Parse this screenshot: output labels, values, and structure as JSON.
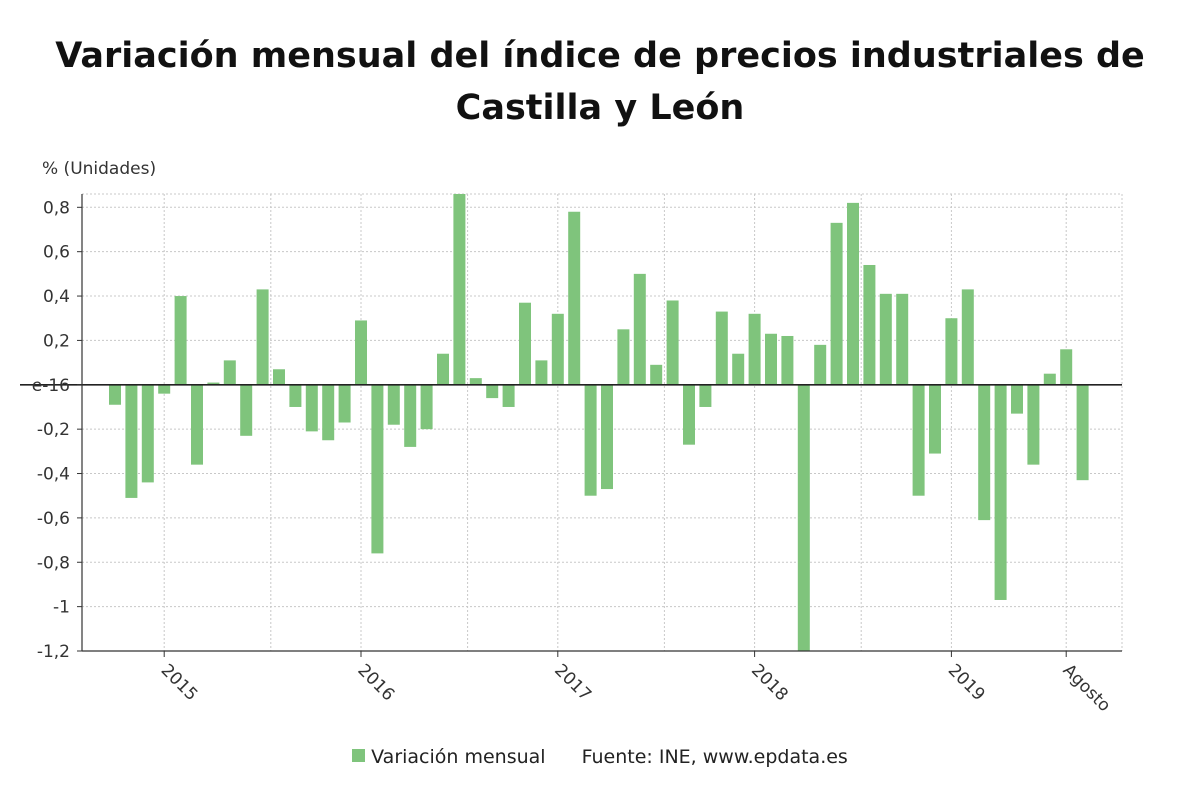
{
  "chart_data": {
    "type": "bar",
    "title_lines": [
      "Variación mensual del índice de precios industriales de",
      "Castilla y León"
    ],
    "ylabel": "% (Unidades)",
    "ylim": [
      -1.2,
      0.86
    ],
    "yticks": [
      0.8,
      0.6,
      0.4,
      0.2,
      0.0,
      -0.2,
      -0.4,
      -0.6,
      -0.8,
      -1.0,
      -1.2
    ],
    "ytick_labels": [
      "0,8",
      "0,6",
      "0,4",
      "0,2",
      "e-16",
      "-0,2",
      "-0,4",
      "-0,6",
      "-0,8",
      "-1",
      "-1,2"
    ],
    "x_ticks": [
      {
        "label": "2015",
        "index": 3
      },
      {
        "label": "2016",
        "index": 15
      },
      {
        "label": "2017",
        "index": 27
      },
      {
        "label": "2018",
        "index": 39
      },
      {
        "label": "2019",
        "index": 51
      },
      {
        "label": "Agosto",
        "index": 58
      }
    ],
    "minor_grid_indices": [
      9,
      21,
      33,
      45
    ],
    "series": [
      {
        "name": "Variación mensual",
        "color": "#7fc47c",
        "values": [
          -0.09,
          -0.51,
          -0.44,
          -0.04,
          0.4,
          -0.36,
          0.01,
          0.11,
          -0.23,
          0.43,
          0.07,
          -0.1,
          -0.21,
          -0.25,
          -0.17,
          0.29,
          -0.76,
          -0.18,
          -0.28,
          -0.2,
          0.14,
          0.88,
          0.03,
          -0.06,
          -0.1,
          0.37,
          0.11,
          0.32,
          0.78,
          -0.5,
          -0.47,
          0.25,
          0.5,
          0.09,
          0.38,
          -0.27,
          -0.1,
          0.33,
          0.14,
          0.32,
          0.23,
          0.22,
          -1.22,
          0.18,
          0.73,
          0.82,
          0.54,
          0.41,
          0.41,
          -0.5,
          -0.31,
          0.3,
          0.43,
          -0.61,
          -0.97,
          -0.13,
          -0.36,
          0.05,
          0.16,
          -0.43
        ]
      }
    ],
    "grid": true,
    "legend_position": "bottom"
  },
  "legend": {
    "series_label": "Variación mensual",
    "source": "Fuente: INE, www.epdata.es"
  }
}
